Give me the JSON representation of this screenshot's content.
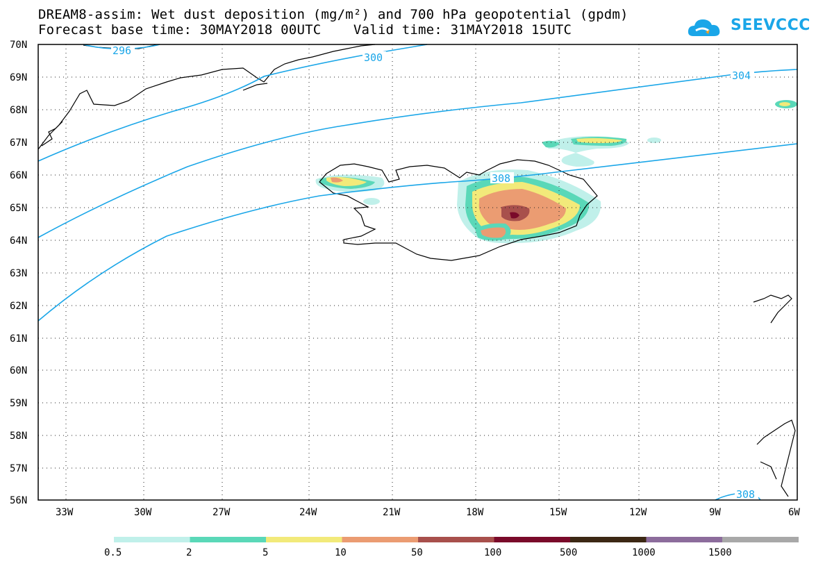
{
  "header": {
    "title_line1": "DREAM8-assim: Wet dust deposition (mg/m²) and 700 hPa geopotential (gpdm)",
    "title_line2": "Forecast base time: 30MAY2018 00UTC    Valid time: 31MAY2018 15UTC",
    "logo_text": "SEEVCCC"
  },
  "axes": {
    "lat_labels": [
      "70N",
      "69N",
      "68N",
      "67N",
      "66N",
      "65N",
      "64N",
      "63N",
      "62N",
      "61N",
      "60N",
      "59N",
      "58N",
      "57N",
      "56N"
    ],
    "lon_labels": [
      "33W",
      "30W",
      "27W",
      "24W",
      "21W",
      "18W",
      "15W",
      "12W",
      "9W",
      "6W"
    ]
  },
  "contours": {
    "labels": [
      "296",
      "300",
      "304",
      "308",
      "308"
    ],
    "color": "#1aa6e8"
  },
  "legend": {
    "labels": [
      "0.5",
      "2",
      "5",
      "10",
      "50",
      "100",
      "500",
      "1000",
      "1500"
    ],
    "colors": [
      "#c0f0ea",
      "#5ad8b8",
      "#f2ea7a",
      "#eb9c72",
      "#a8504c",
      "#7a0a2a",
      "#3c2814",
      "#8c6c9c",
      "#a8a8a8"
    ]
  }
}
